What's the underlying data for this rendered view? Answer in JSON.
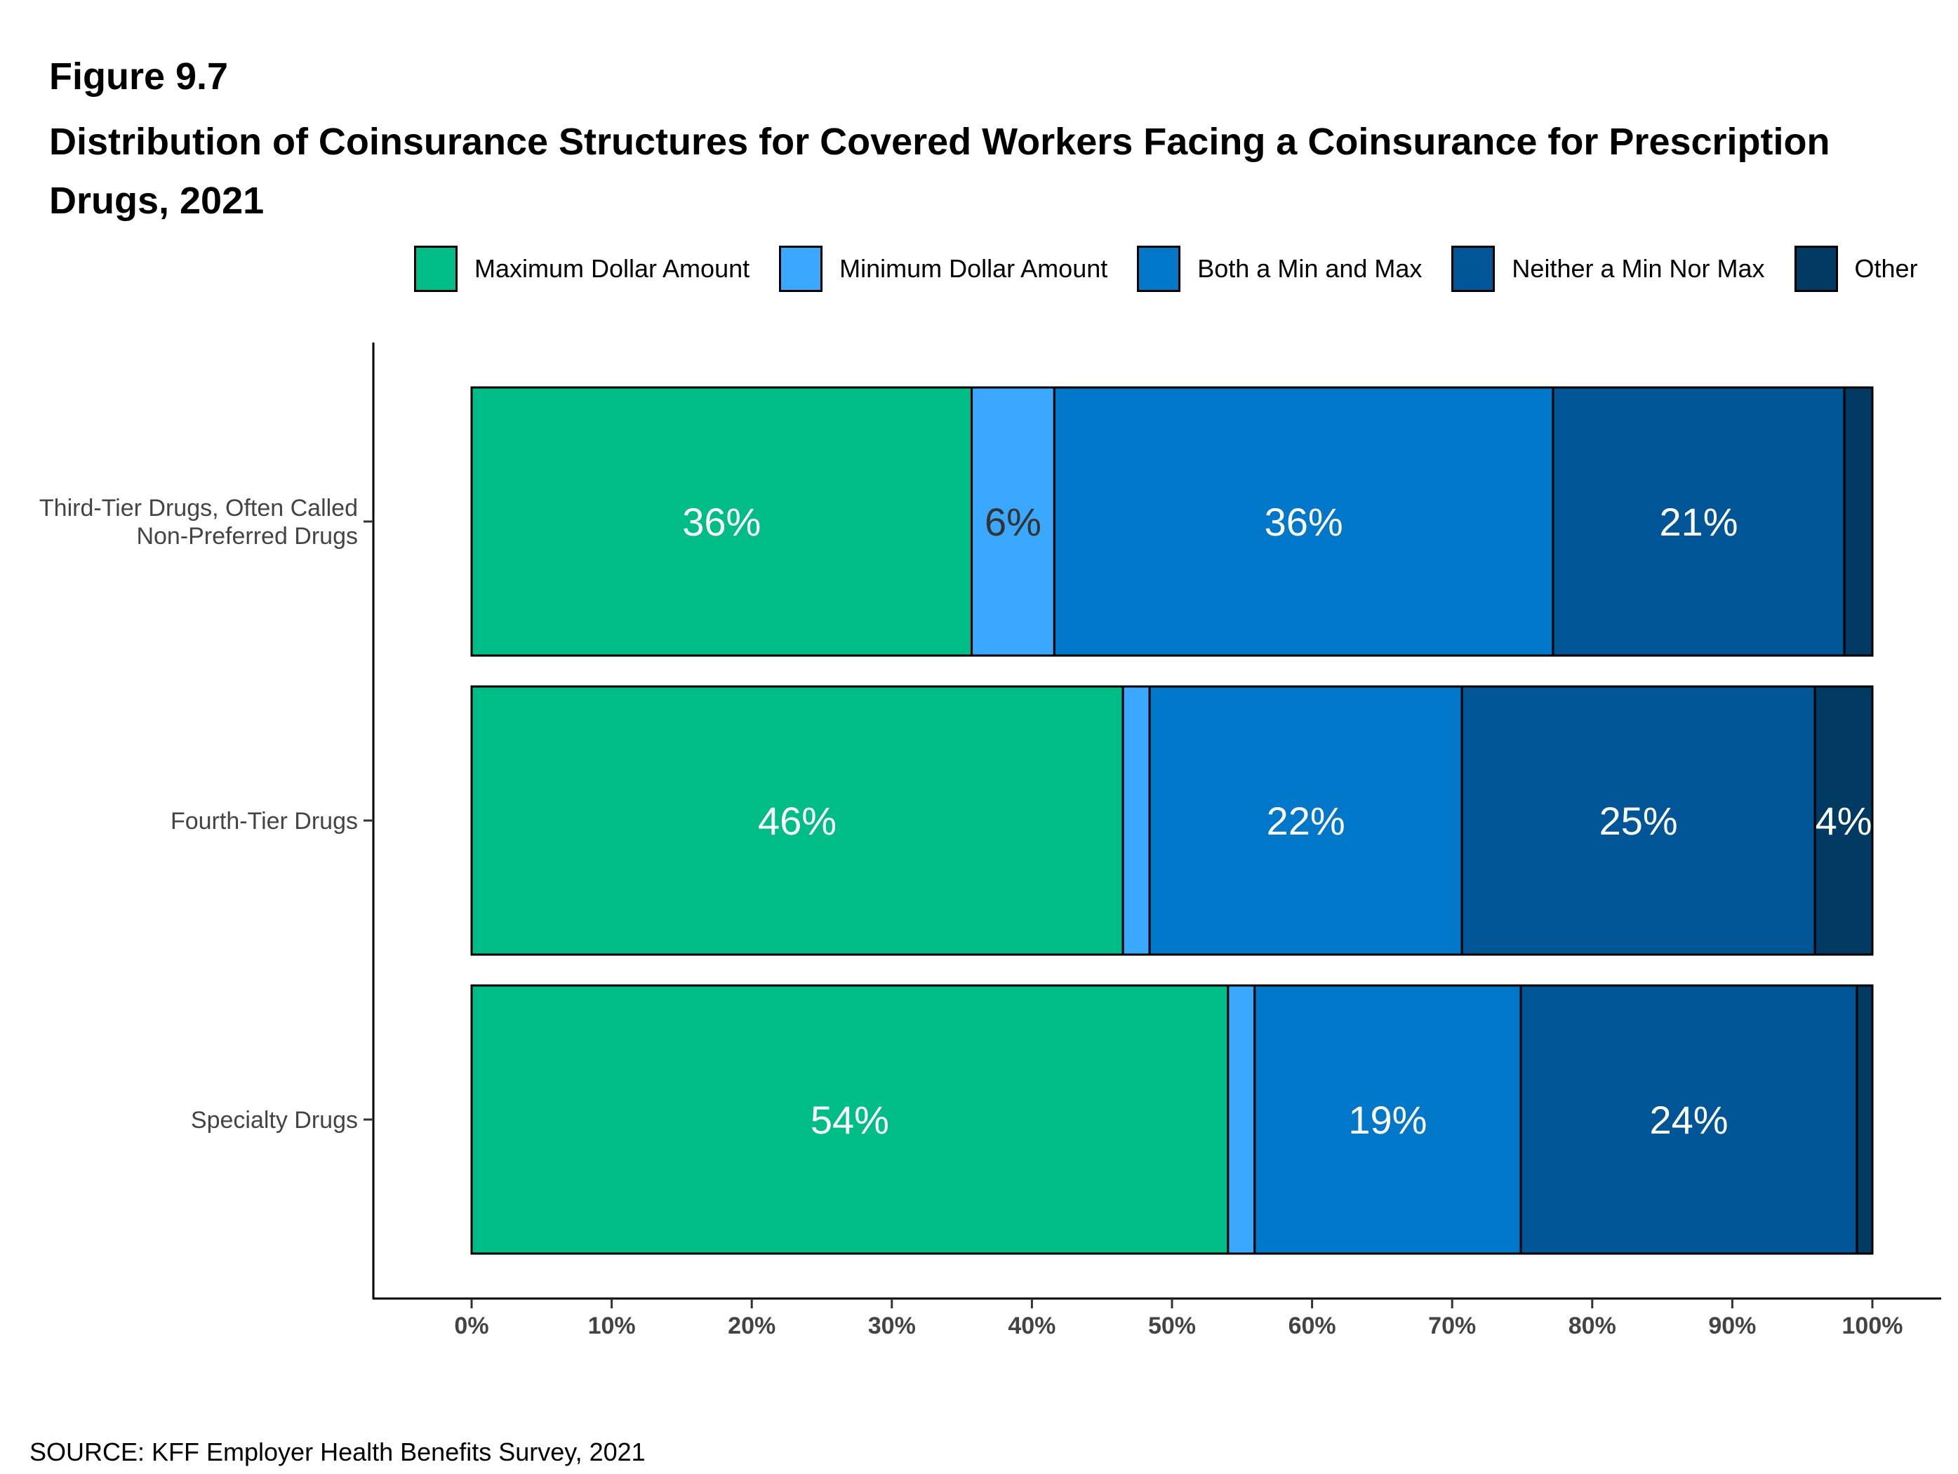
{
  "figure": {
    "number": "Figure 9.7",
    "title": "Distribution of Coinsurance Structures for Covered Workers Facing a Coinsurance for Prescription Drugs, 2021",
    "source": "SOURCE: KFF Employer Health Benefits Survey, 2021"
  },
  "colors": {
    "max": "#00BC87",
    "min": "#3BA8FF",
    "both": "#0077C8",
    "neither": "#005596",
    "other": "#003A63",
    "label_light": "#FFFFFF",
    "label_dark": "#333333"
  },
  "chart_data": {
    "type": "bar",
    "orientation": "horizontal",
    "stacked": true,
    "categories": [
      [
        "Third-Tier Drugs, Often Called",
        "Non-Preferred Drugs"
      ],
      [
        "Fourth-Tier Drugs"
      ],
      [
        "Specialty Drugs"
      ]
    ],
    "series": [
      {
        "name": "Maximum Dollar Amount",
        "color_key": "max",
        "values": [
          35.7,
          46.5,
          54.0
        ],
        "labels": [
          "36%",
          "46%",
          "54%"
        ],
        "label_color": "label_light"
      },
      {
        "name": "Minimum Dollar Amount",
        "color_key": "min",
        "values": [
          5.9,
          1.9,
          1.9
        ],
        "labels": [
          "6%",
          "",
          ""
        ],
        "label_color": "label_dark"
      },
      {
        "name": "Both a Min and Max",
        "color_key": "both",
        "values": [
          35.6,
          22.3,
          19.0
        ],
        "labels": [
          "36%",
          "22%",
          "19%"
        ],
        "label_color": "label_light"
      },
      {
        "name": "Neither a Min Nor Max",
        "color_key": "neither",
        "values": [
          20.8,
          25.2,
          24.0
        ],
        "labels": [
          "21%",
          "25%",
          "24%"
        ],
        "label_color": "label_light"
      },
      {
        "name": "Other",
        "color_key": "other",
        "values": [
          2.0,
          4.1,
          1.1
        ],
        "labels": [
          "",
          "4%",
          ""
        ],
        "label_color": "label_light"
      }
    ],
    "xlim": [
      0,
      100
    ],
    "x_ticks": [
      "0%",
      "10%",
      "20%",
      "30%",
      "40%",
      "50%",
      "60%",
      "70%",
      "80%",
      "90%",
      "100%"
    ],
    "xlabel": "",
    "ylabel": "",
    "legend_position": "top",
    "grid": false
  }
}
